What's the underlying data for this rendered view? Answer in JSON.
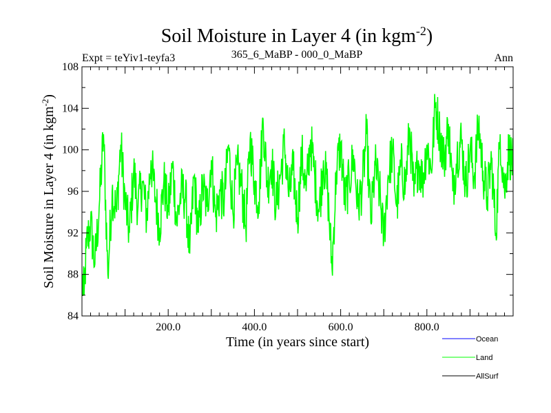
{
  "chart_data": {
    "type": "line",
    "title_main": "Soil Moisture in Layer 4 (in kgm",
    "title_sup": "-2",
    "title_close": ")",
    "subtitle_left": "Expt = teYiv1-teyfa3",
    "subtitle_center": "365_6_MaBP - 000_0_MaBP",
    "subtitle_right": "Ann",
    "xlabel": "Time (in years since start)",
    "ylabel_main": "Soil Moisture in Layer 4 (in kgm",
    "ylabel_sup": "-2",
    "ylabel_close": ")",
    "xlim": [
      0,
      1000
    ],
    "ylim": [
      84,
      108
    ],
    "xticks": [
      200,
      400,
      600,
      800
    ],
    "xtick_labels": [
      "200.0",
      "400.0",
      "600.0",
      "800.0"
    ],
    "yticks": [
      84,
      88,
      92,
      96,
      100,
      104,
      108
    ],
    "ytick_labels": [
      "84",
      "88",
      "92",
      "96",
      "100",
      "104",
      "108"
    ],
    "legend": [
      {
        "name": "Ocean",
        "color": "#0000ff"
      },
      {
        "name": "Land",
        "color": "#00ff00"
      },
      {
        "name": "AllSurf",
        "color": "#000000"
      }
    ],
    "series": [
      {
        "name": "Land",
        "color": "#00ff00",
        "x": [
          0,
          5,
          10,
          20,
          30,
          40,
          50,
          60,
          70,
          80,
          90,
          100,
          110,
          120,
          130,
          140,
          150,
          160,
          170,
          180,
          190,
          200,
          210,
          220,
          230,
          240,
          250,
          260,
          270,
          280,
          290,
          300,
          310,
          320,
          330,
          340,
          350,
          360,
          370,
          380,
          390,
          400,
          410,
          420,
          430,
          440,
          450,
          460,
          470,
          480,
          490,
          500,
          510,
          520,
          530,
          540,
          550,
          560,
          570,
          580,
          590,
          600,
          610,
          620,
          630,
          640,
          650,
          660,
          670,
          680,
          690,
          700,
          710,
          720,
          730,
          740,
          750,
          760,
          770,
          780,
          790,
          800,
          810,
          820,
          830,
          840,
          850,
          860,
          870,
          880,
          890,
          900,
          910,
          920,
          930,
          940,
          950,
          960,
          970,
          980,
          990,
          1000
        ],
        "y": [
          87.5,
          86.0,
          90.5,
          93.0,
          89.0,
          94.5,
          101.5,
          88.0,
          96.0,
          94.0,
          100.5,
          95.0,
          92.0,
          98.0,
          94.5,
          97.0,
          93.5,
          99.0,
          95.5,
          92.5,
          97.0,
          94.0,
          98.5,
          93.0,
          96.0,
          95.5,
          90.0,
          97.5,
          92.0,
          96.5,
          94.5,
          99.0,
          93.5,
          96.0,
          95.0,
          100.5,
          94.0,
          98.5,
          96.5,
          92.5,
          101.0,
          97.0,
          95.0,
          103.0,
          96.5,
          99.0,
          94.5,
          97.5,
          100.5,
          95.5,
          98.0,
          93.5,
          99.5,
          96.0,
          101.0,
          97.5,
          94.0,
          99.0,
          96.0,
          88.5,
          98.0,
          100.5,
          95.0,
          97.0,
          99.5,
          94.5,
          96.5,
          101.5,
          93.0,
          98.5,
          96.0,
          91.5,
          97.5,
          100.0,
          94.5,
          98.5,
          96.5,
          102.0,
          95.5,
          99.0,
          97.0,
          100.5,
          98.0,
          104.5,
          101.5,
          99.0,
          102.5,
          96.0,
          99.5,
          101.0,
          96.5,
          100.0,
          97.5,
          102.5,
          98.0,
          95.5,
          99.0,
          92.0,
          101.5,
          96.0,
          100.0,
          98.5
        ]
      },
      {
        "name": "Ocean",
        "color": "#0000ff",
        "x": [],
        "y": []
      },
      {
        "name": "AllSurf",
        "color": "#000000",
        "x": [],
        "y": []
      }
    ]
  }
}
